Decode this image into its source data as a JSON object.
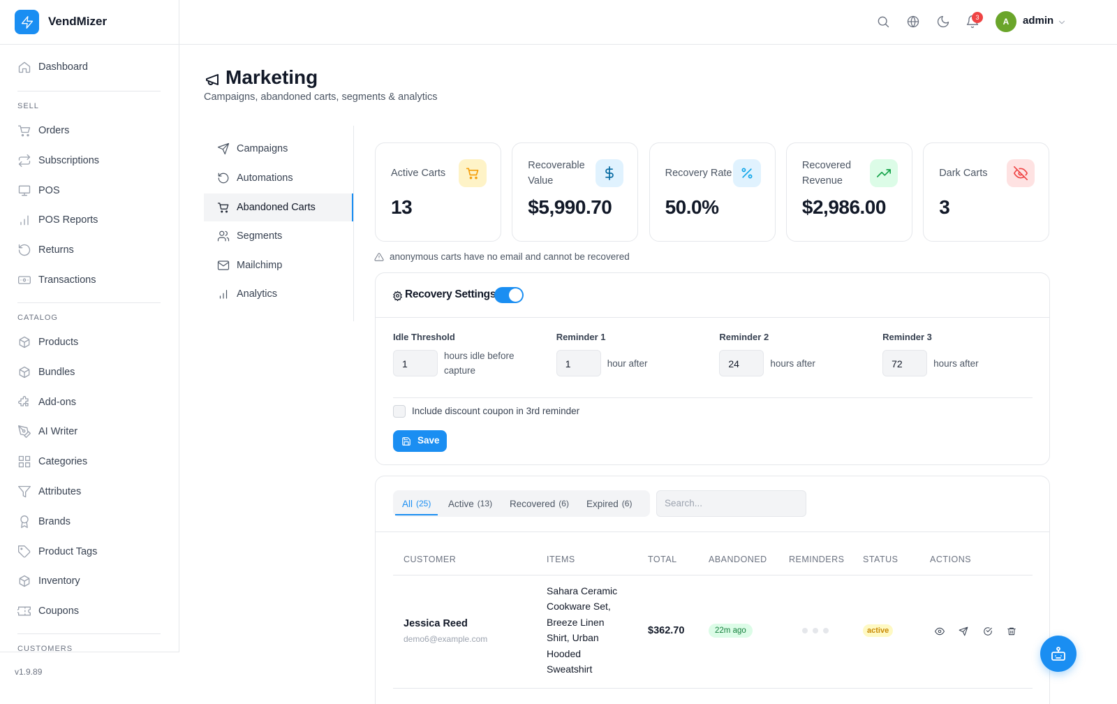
{
  "sidebar": {
    "brand": "VendMizer",
    "top": [
      "Dashboard"
    ],
    "sections": [
      {
        "title": "SELL",
        "items": [
          "Orders",
          "Subscriptions",
          "POS",
          "POS Reports",
          "Returns",
          "Transactions"
        ]
      },
      {
        "title": "CATALOG",
        "items": [
          "Products",
          "Bundles",
          "Add-ons",
          "AI Writer",
          "Categories",
          "Attributes",
          "Brands",
          "Product Tags",
          "Inventory",
          "Coupons"
        ]
      },
      {
        "title": "CUSTOMERS"
      }
    ],
    "version": "v1.9.89"
  },
  "header": {
    "notifications": 3,
    "avatar": "A",
    "user": "admin"
  },
  "page": {
    "title": "Marketing",
    "subtitle": "Campaigns, abandoned carts, segments & analytics"
  },
  "subnav": {
    "items": [
      "Campaigns",
      "Automations",
      "Abandoned Carts",
      "Segments",
      "Mailchimp",
      "Analytics"
    ],
    "active": 2
  },
  "stats": [
    {
      "label": "Active Carts",
      "value": "13"
    },
    {
      "label": "Recoverable Value",
      "value": "$5,990.70"
    },
    {
      "label": "Recovery Rate",
      "value": "50.0%"
    },
    {
      "label": "Recovered Revenue",
      "value": "$2,986.00"
    },
    {
      "label": "Dark Carts",
      "value": "3"
    }
  ],
  "notice": "anonymous carts have no email and cannot be recovered",
  "settings": {
    "title": "Recovery Settings",
    "enabled": true,
    "fields": [
      {
        "label": "Idle Threshold",
        "value": 1,
        "unit": "hours idle before capture"
      },
      {
        "label": "Reminder 1",
        "value": 1,
        "unit": "hour after"
      },
      {
        "label": "Reminder 2",
        "value": 24,
        "unit": "hours after"
      },
      {
        "label": "Reminder 3",
        "value": 72,
        "unit": "hours after"
      }
    ],
    "coupon_label": "Include discount coupon in 3rd reminder",
    "coupon_checked": false,
    "save": "Save"
  },
  "carts": {
    "tabs": [
      {
        "label": "All",
        "count": "(25)"
      },
      {
        "label": "Active",
        "count": "(13)"
      },
      {
        "label": "Recovered",
        "count": "(6)"
      },
      {
        "label": "Expired",
        "count": "(6)"
      }
    ],
    "active_tab": 0,
    "search_placeholder": "Search...",
    "columns": [
      "CUSTOMER",
      "ITEMS",
      "TOTAL",
      "ABANDONED",
      "REMINDERS",
      "STATUS",
      "ACTIONS"
    ],
    "rows": [
      {
        "name": "Jessica Reed",
        "email": "demo6@example.com",
        "items": "Sahara Ceramic Cookware Set, Breeze Linen Shirt, Urban Hooded Sweatshirt",
        "total": "$362.70",
        "abandoned": "22m ago",
        "reminders_total": 3,
        "status": "active"
      }
    ]
  }
}
